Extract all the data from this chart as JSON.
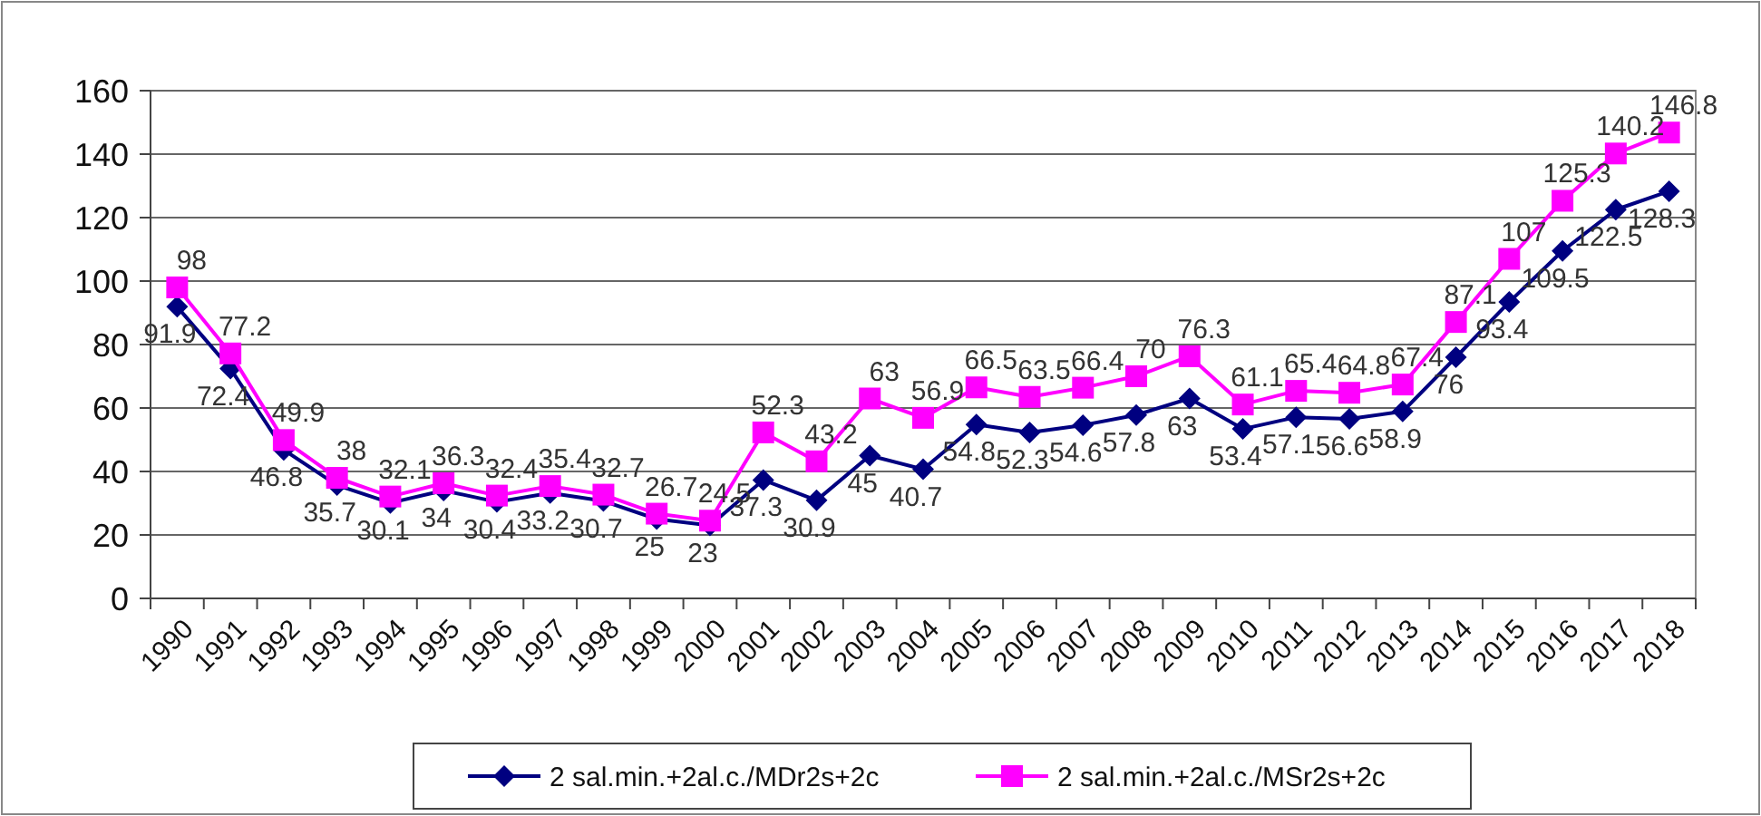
{
  "chart_data": {
    "type": "line",
    "categories": [
      "1990",
      "1991",
      "1992",
      "1993",
      "1994",
      "1995",
      "1996",
      "1997",
      "1998",
      "1999",
      "2000",
      "2001",
      "2002",
      "2003",
      "2004",
      "2005",
      "2006",
      "2007",
      "2008",
      "2009",
      "2010",
      "2011",
      "2012",
      "2013",
      "2014",
      "2015",
      "2016",
      "2017",
      "2018"
    ],
    "series": [
      {
        "name": "2 sal.min.+2al.c./MDr2s+2c",
        "color": "#000080",
        "marker": "diamond",
        "values": [
          91.9,
          72.4,
          46.8,
          35.7,
          30.1,
          34,
          30.4,
          33.2,
          30.7,
          25,
          23,
          37.3,
          30.9,
          45,
          40.7,
          54.8,
          52.3,
          54.6,
          57.8,
          63,
          53.4,
          57.1,
          56.6,
          58.9,
          76,
          93.4,
          109.5,
          122.5,
          128.3
        ]
      },
      {
        "name": "2 sal.min.+2al.c./MSr2s+2c",
        "color": "#ff00ff",
        "marker": "square",
        "values": [
          98,
          77.2,
          49.9,
          38,
          32.1,
          36.3,
          32.4,
          35.4,
          32.7,
          26.7,
          24.5,
          52.3,
          43.2,
          63,
          56.9,
          66.5,
          63.5,
          66.4,
          70,
          76.3,
          61.1,
          65.4,
          64.8,
          67.4,
          87.1,
          107,
          125.3,
          140.2,
          146.8
        ]
      }
    ],
    "ylim": [
      0,
      160
    ],
    "yticks": [
      0,
      20,
      40,
      60,
      80,
      100,
      120,
      140,
      160
    ],
    "grid": "y",
    "data_labels": true,
    "legend": "bottom"
  }
}
